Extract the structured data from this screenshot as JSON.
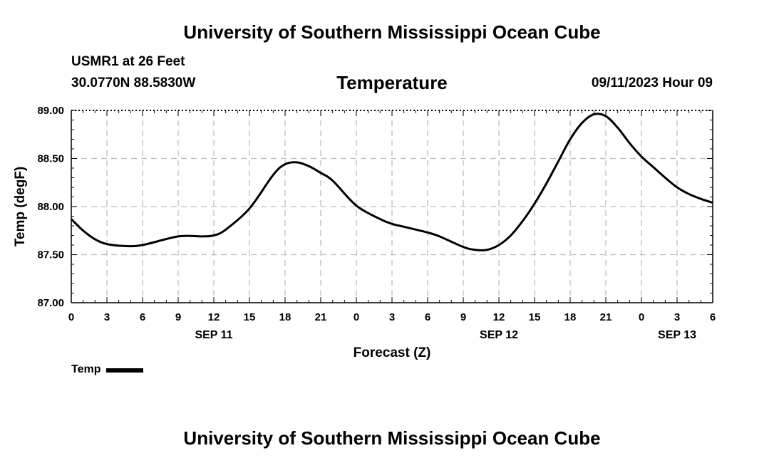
{
  "header": {
    "top_title": "University of Southern Mississippi Ocean Cube",
    "station": "USMR1 at 26 Feet",
    "coords": "30.0770N  88.5830W",
    "datetime": "09/11/2023 Hour 09"
  },
  "footer": {
    "bottom_title": "University of Southern Mississippi Ocean Cube"
  },
  "legend": {
    "label": "Temp",
    "color": "#000000"
  },
  "chart_data": {
    "type": "line",
    "title": "Temperature",
    "xlabel": "Forecast (Z)",
    "ylabel": "Temp (degF)",
    "ylim": [
      87.0,
      89.0
    ],
    "yticks": [
      "87.00",
      "87.50",
      "88.00",
      "88.50",
      "89.00"
    ],
    "xlim": [
      0,
      54
    ],
    "xticks": [
      {
        "x": 0,
        "label": "0"
      },
      {
        "x": 3,
        "label": "3"
      },
      {
        "x": 6,
        "label": "6"
      },
      {
        "x": 9,
        "label": "9"
      },
      {
        "x": 12,
        "label": "12"
      },
      {
        "x": 15,
        "label": "15"
      },
      {
        "x": 18,
        "label": "18"
      },
      {
        "x": 21,
        "label": "21"
      },
      {
        "x": 24,
        "label": "0"
      },
      {
        "x": 27,
        "label": "3"
      },
      {
        "x": 30,
        "label": "6"
      },
      {
        "x": 33,
        "label": "9"
      },
      {
        "x": 36,
        "label": "12"
      },
      {
        "x": 39,
        "label": "15"
      },
      {
        "x": 42,
        "label": "18"
      },
      {
        "x": 45,
        "label": "21"
      },
      {
        "x": 48,
        "label": "0"
      },
      {
        "x": 51,
        "label": "3"
      },
      {
        "x": 54,
        "label": "6"
      }
    ],
    "date_labels": [
      {
        "x": 12,
        "label": "SEP 11"
      },
      {
        "x": 36,
        "label": "SEP 12"
      },
      {
        "x": 51,
        "label": "SEP 13"
      }
    ],
    "grid": true,
    "series": [
      {
        "name": "Temp",
        "color": "#000000",
        "x": [
          0,
          1,
          2,
          3,
          4.5,
          6,
          9,
          11,
          12,
          13,
          15,
          17,
          18,
          19,
          20,
          21,
          22,
          24,
          26,
          27,
          28,
          30,
          31,
          33,
          34,
          35,
          36,
          37,
          38,
          39,
          40,
          41,
          42,
          43,
          44,
          45,
          46,
          47,
          48,
          49,
          50,
          51,
          52,
          53,
          54
        ],
        "values": [
          87.87,
          87.75,
          87.66,
          87.61,
          87.59,
          87.6,
          87.69,
          87.69,
          87.7,
          87.76,
          87.98,
          88.33,
          88.44,
          88.46,
          88.42,
          88.35,
          88.27,
          88.01,
          87.87,
          87.82,
          87.79,
          87.73,
          87.69,
          87.58,
          87.55,
          87.55,
          87.6,
          87.7,
          87.85,
          88.03,
          88.24,
          88.47,
          88.7,
          88.87,
          88.96,
          88.94,
          88.82,
          88.66,
          88.52,
          88.41,
          88.3,
          88.2,
          88.13,
          88.08,
          88.04
        ]
      }
    ]
  }
}
